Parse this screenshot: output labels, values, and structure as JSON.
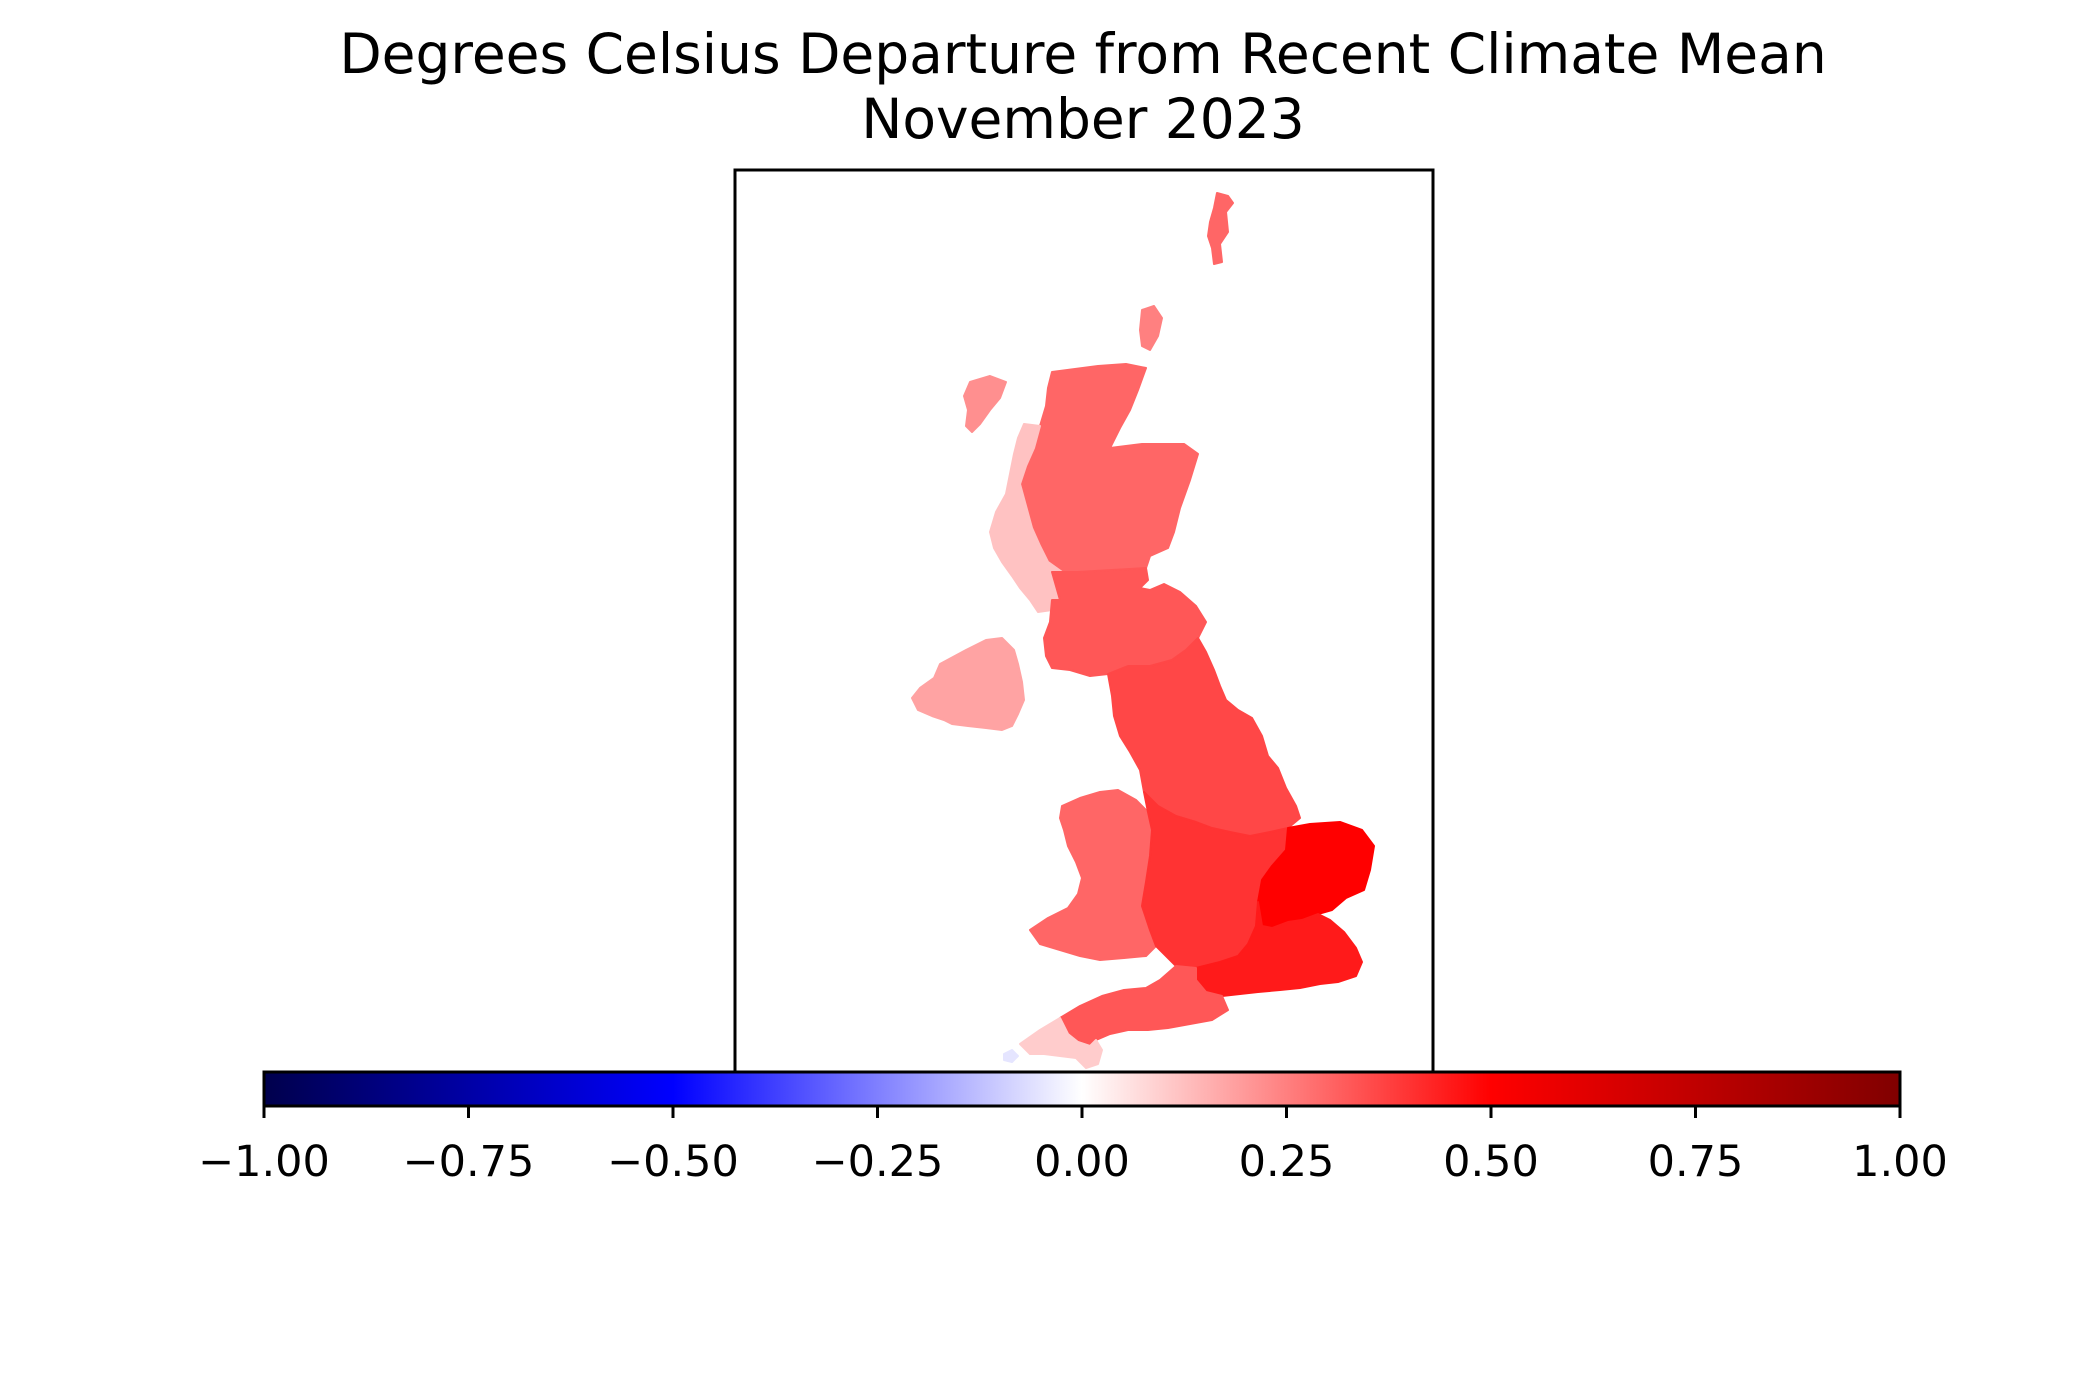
{
  "title": {
    "line1": "Degrees Celsius Departure from Recent Climate Mean",
    "line2": "November 2023"
  },
  "colorbar": {
    "min": -1.0,
    "max": 1.0,
    "ticks": [
      {
        "value": -1.0,
        "label": "−1.00"
      },
      {
        "value": -0.75,
        "label": "−0.75"
      },
      {
        "value": -0.5,
        "label": "−0.50"
      },
      {
        "value": -0.25,
        "label": "−0.25"
      },
      {
        "value": 0.0,
        "label": "0.00"
      },
      {
        "value": 0.25,
        "label": "0.25"
      },
      {
        "value": 0.5,
        "label": "0.50"
      },
      {
        "value": 0.75,
        "label": "0.75"
      },
      {
        "value": 1.0,
        "label": "1.00"
      }
    ],
    "colors": [
      "#00004c",
      "#0000ff",
      "#ffffff",
      "#ff0000",
      "#800000"
    ]
  },
  "map": {
    "regions": [
      {
        "id": "shetland",
        "anomaly": 0.3
      },
      {
        "id": "orkney",
        "anomaly": 0.25
      },
      {
        "id": "north-scotland",
        "anomaly": 0.3
      },
      {
        "id": "west-highlands",
        "anomaly": 0.12
      },
      {
        "id": "outer-hebrides",
        "anomaly": 0.22
      },
      {
        "id": "southern-scotland",
        "anomaly": 0.33
      },
      {
        "id": "northern-ireland",
        "anomaly": 0.18
      },
      {
        "id": "northern-england",
        "anomaly": 0.36
      },
      {
        "id": "wales",
        "anomaly": 0.3
      },
      {
        "id": "midlands",
        "anomaly": 0.4
      },
      {
        "id": "east-anglia",
        "anomaly": 0.5
      },
      {
        "id": "southeast-england",
        "anomaly": 0.45
      },
      {
        "id": "southwest-england",
        "anomaly": 0.33
      },
      {
        "id": "cornwall",
        "anomaly": 0.1
      },
      {
        "id": "scilly",
        "anomaly": -0.05
      }
    ]
  }
}
